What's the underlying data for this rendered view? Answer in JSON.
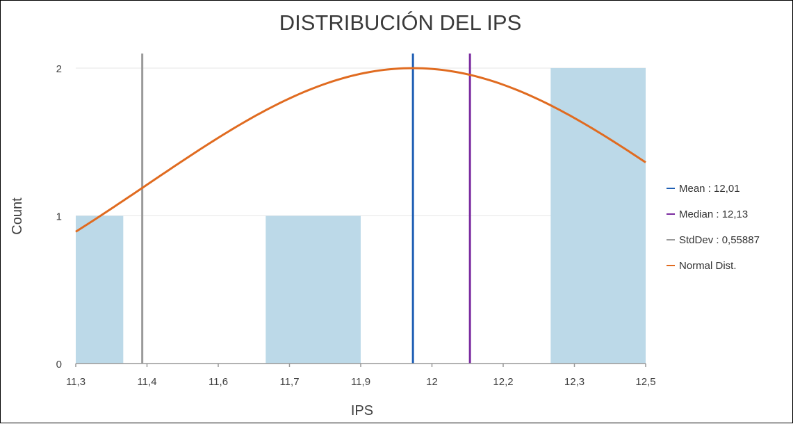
{
  "chart_data": {
    "type": "bar",
    "title": "DISTRIBUCIÓN DEL IPS",
    "xlabel": "IPS",
    "ylabel": "Count",
    "x_ticks": [
      "11,3",
      "11,4",
      "11,6",
      "11,7",
      "11,9",
      "12",
      "12,2",
      "12,3",
      "12,5"
    ],
    "y_ticks": [
      "0",
      "1",
      "2"
    ],
    "ylim": [
      0,
      2
    ],
    "xlim": [
      11.3,
      12.5
    ],
    "grid": true,
    "bins": [
      {
        "from": 11.3,
        "to": 11.4,
        "count": 1
      },
      {
        "from": 11.4,
        "to": 11.6,
        "count": 0
      },
      {
        "from": 11.6,
        "to": 11.7,
        "count": 0
      },
      {
        "from": 11.7,
        "to": 11.9,
        "count": 1
      },
      {
        "from": 11.9,
        "to": 12.0,
        "count": 0
      },
      {
        "from": 12.0,
        "to": 12.2,
        "count": 0
      },
      {
        "from": 12.2,
        "to": 12.3,
        "count": 0
      },
      {
        "from": 12.3,
        "to": 12.5,
        "count": 2
      }
    ],
    "reference_lines": [
      {
        "name": "Mean",
        "value": 12.01,
        "color": "#1f5fb4"
      },
      {
        "name": "Median",
        "value": 12.13,
        "color": "#7b2ca0"
      },
      {
        "name": "StdDev",
        "value": 11.44,
        "color": "#9a9a9a"
      }
    ],
    "normal_curve": {
      "mean": 12.01,
      "std": 0.55887,
      "peak": 2,
      "color": "#e06b20"
    },
    "bar_color": "#bcd9e8",
    "legend": {
      "placement": "right",
      "items": [
        {
          "label": "Mean : 12,01",
          "color": "#1f5fb4"
        },
        {
          "label": "Median : 12,13",
          "color": "#7b2ca0"
        },
        {
          "label": "StdDev : 0,55887",
          "color": "#9a9a9a"
        },
        {
          "label": "Normal Dist.",
          "color": "#e06b20"
        }
      ]
    }
  }
}
